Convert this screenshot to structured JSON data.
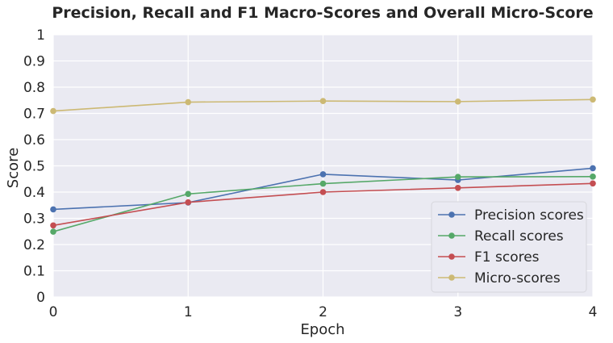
{
  "chart_data": {
    "type": "line",
    "title": "Precision, Recall and F1 Macro-Scores and Overall Micro-Score",
    "xlabel": "Epoch",
    "ylabel": "Score",
    "x": [
      0,
      1,
      2,
      3,
      4
    ],
    "xlim": [
      0,
      4
    ],
    "ylim": [
      0,
      1
    ],
    "x_ticks": [
      "0",
      "1",
      "2",
      "3",
      "4"
    ],
    "y_ticks": [
      "0",
      "0.1",
      "0.2",
      "0.3",
      "0.4",
      "0.5",
      "0.6",
      "0.7",
      "0.8",
      "0.9",
      "1"
    ],
    "grid": true,
    "legend_position": "lower-right",
    "background": "#eaeaf2",
    "series": [
      {
        "name": "Precision scores",
        "color": "#4c72b0",
        "values": [
          0.334,
          0.36,
          0.468,
          0.446,
          0.491
        ]
      },
      {
        "name": "Recall scores",
        "color": "#55a868",
        "values": [
          0.249,
          0.393,
          0.432,
          0.458,
          0.459
        ]
      },
      {
        "name": "F1 scores",
        "color": "#c44e52",
        "values": [
          0.273,
          0.361,
          0.4,
          0.416,
          0.433
        ]
      },
      {
        "name": "Micro-scores",
        "color": "#ccb974",
        "values": [
          0.709,
          0.743,
          0.747,
          0.745,
          0.753
        ]
      }
    ]
  }
}
